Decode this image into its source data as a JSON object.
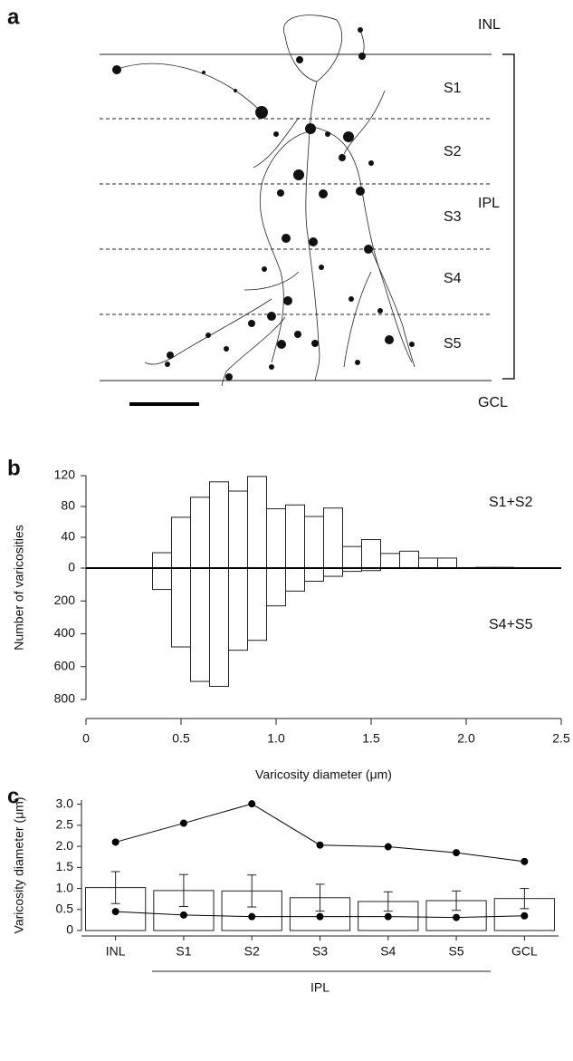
{
  "panel_a": {
    "label": "a",
    "layers": [
      "INL",
      "S1",
      "S2",
      "S3",
      "S4",
      "S5",
      "GCL"
    ],
    "bracket_label": "IPL"
  },
  "chart_data": [
    {
      "type": "histogram",
      "label": "b",
      "ylabel": "Number of varicosities",
      "xlabel": "Varicosity diameter (μm)",
      "bins": [
        0.35,
        0.45,
        0.55,
        0.65,
        0.75,
        0.85,
        0.95,
        1.05,
        1.15,
        1.25,
        1.35,
        1.45,
        1.55,
        1.65,
        1.75,
        1.85,
        1.95,
        2.05,
        2.15,
        2.25
      ],
      "series": [
        {
          "name": "S1+S2",
          "color": "#ffffff",
          "values": [
            20,
            66,
            92,
            112,
            100,
            119,
            77,
            82,
            67,
            78,
            28,
            37,
            19,
            22,
            13,
            13,
            0,
            1,
            1
          ]
        },
        {
          "name": "S4+S5",
          "color": "#ffffff",
          "axis": "y2",
          "values": [
            130,
            480,
            690,
            720,
            500,
            440,
            230,
            140,
            80,
            50,
            20,
            15,
            0,
            0,
            0,
            0,
            0,
            0,
            0
          ]
        }
      ],
      "xlim": [
        0,
        2.5
      ],
      "xticks": [
        0,
        0.5,
        {
          "value": 1,
          "label": "1.0"
        },
        1.5,
        {
          "value": 2,
          "label": "2.0"
        },
        2.5
      ],
      "ylim": [
        0,
        120
      ],
      "yticks": [
        0,
        40,
        80,
        120
      ],
      "y2lim": [
        0,
        800
      ],
      "y2ticks": [
        200,
        400,
        600,
        800
      ]
    },
    {
      "type": "bar",
      "label": "c",
      "ylabel": "Varicosity diameter (μm)",
      "categories": [
        "INL",
        "S1",
        "S2",
        "S3",
        "S4",
        "S5",
        "GCL"
      ],
      "group_label": "IPL",
      "color": "#ffffff",
      "values": [
        1.02,
        0.95,
        0.94,
        0.78,
        0.69,
        0.71,
        0.76
      ],
      "errors": [
        0.38,
        0.38,
        0.38,
        0.32,
        0.23,
        0.23,
        0.24
      ],
      "lines": [
        {
          "color": "#000000",
          "values": [
            2.1,
            2.55,
            3.01,
            2.03,
            1.99,
            1.85,
            1.64
          ]
        },
        {
          "color": "#000000",
          "values": [
            0.45,
            0.37,
            0.33,
            0.33,
            0.33,
            0.31,
            0.35
          ]
        }
      ],
      "ylim": [
        0,
        3.1
      ],
      "yticks": [
        0,
        0.5,
        {
          "value": 1,
          "label": "1.0"
        },
        1.5,
        {
          "value": 2,
          "label": "2.0"
        },
        2.5,
        {
          "value": 3,
          "label": "3.0"
        }
      ]
    }
  ]
}
